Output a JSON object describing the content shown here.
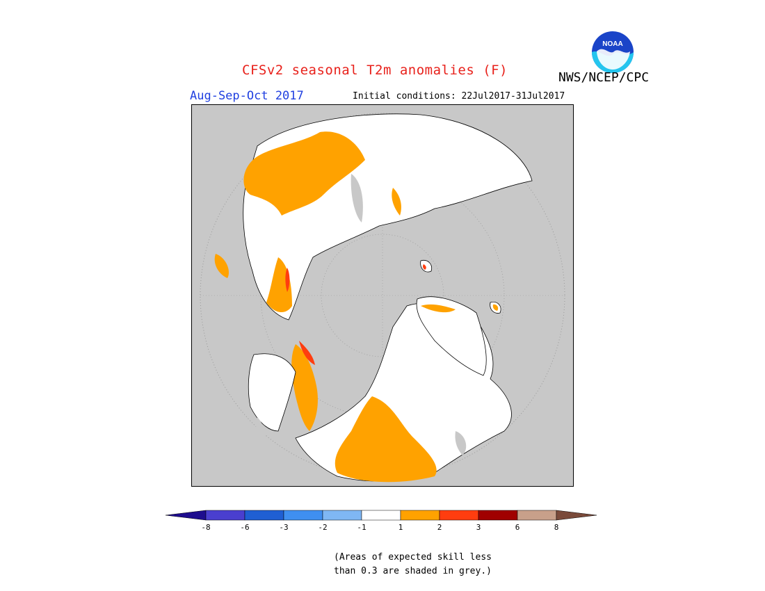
{
  "header": {
    "title": "CFSv2 seasonal T2m anomalies (F)",
    "org": "NWS/NCEP/CPC",
    "logo_text": "NOAA",
    "season": "Aug-Sep-Oct 2017",
    "initial_conditions": "Initial conditions: 22Jul2017-31Jul2017"
  },
  "map": {
    "projection": "north-polar-stereographic",
    "background_color": "#c8c8c8",
    "ocean_color": "#c8c8c8",
    "icon": "polar-map"
  },
  "legend": {
    "colors": [
      "#1e0d8e",
      "#4a3fcf",
      "#1f5fd3",
      "#3f8ff0",
      "#7fb7f4",
      "#ffffff",
      "#ffa200",
      "#ff3d0f",
      "#a00000",
      "#c8a08a",
      "#7a4a3a"
    ],
    "labels": [
      "-8",
      "-6",
      "-3",
      "-2",
      "-1",
      "1",
      "2",
      "3",
      "6",
      "8"
    ]
  },
  "note": {
    "line1": "(Areas of expected skill less",
    "line2": "than 0.3 are shaded in grey.)"
  }
}
